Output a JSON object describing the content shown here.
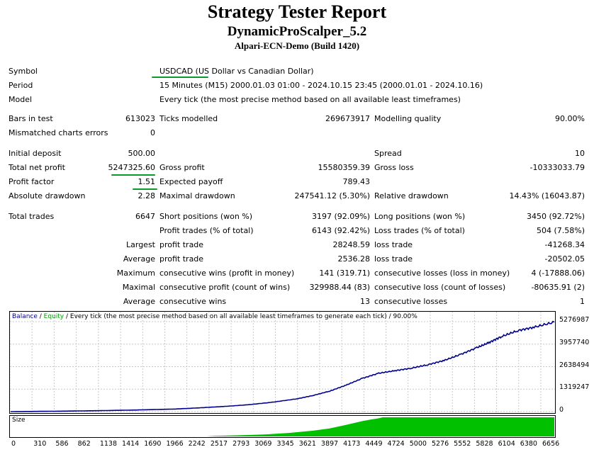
{
  "header": {
    "title": "Strategy Tester Report",
    "expert": "DynamicProScalper_5.2",
    "server": "Alpari-ECN-Demo (Build 1420)"
  },
  "info": {
    "symbol_label": "Symbol",
    "symbol_value": "USDCAD (US Dollar vs Canadian Dollar)",
    "period_label": "Period",
    "period_value": "15 Minutes (M15) 2000.01.03 01:00 - 2024.10.15 23:45 (2000.01.01 - 2024.10.16)",
    "model_label": "Model",
    "model_value": "Every tick (the most precise method based on all available least timeframes)"
  },
  "stats": {
    "bars_label": "Bars in test",
    "bars_value": "613023",
    "ticks_label": "Ticks modelled",
    "ticks_value": "269673917",
    "quality_label": "Modelling quality",
    "quality_value": "90.00%",
    "mismatch_label": "Mismatched charts errors",
    "mismatch_value": "0",
    "deposit_label": "Initial deposit",
    "deposit_value": "500.00",
    "spread_label": "Spread",
    "spread_value": "10",
    "net_label": "Total net profit",
    "net_value": "5247325.60",
    "gross_profit_label": "Gross profit",
    "gross_profit_value": "15580359.39",
    "gross_loss_label": "Gross loss",
    "gross_loss_value": "-10333033.79",
    "pf_label": "Profit factor",
    "pf_value": "1.51",
    "ep_label": "Expected payoff",
    "ep_value": "789.43",
    "abs_dd_label": "Absolute drawdown",
    "abs_dd_value": "2.28",
    "max_dd_label": "Maximal drawdown",
    "max_dd_value": "247541.12 (5.30%)",
    "rel_dd_label": "Relative drawdown",
    "rel_dd_value": "14.43% (16043.87)",
    "trades_label": "Total trades",
    "trades_value": "6647",
    "short_label": "Short positions (won %)",
    "short_value": "3197 (92.09%)",
    "long_label": "Long positions (won %)",
    "long_value": "3450 (92.72%)",
    "pt_label": "Profit trades (% of total)",
    "pt_value": "6143 (92.42%)",
    "lt_label": "Loss trades (% of total)",
    "lt_value": "504 (7.58%)",
    "largest_label": "Largest",
    "lpt_label": "profit trade",
    "lpt_value": "28248.59",
    "llt_label": "loss trade",
    "llt_value": "-41268.34",
    "average_label": "Average",
    "apt_label": "profit trade",
    "apt_value": "2536.28",
    "alt_label": "loss trade",
    "alt_value": "-20502.05",
    "maximum_label": "Maximum",
    "mcw_label": "consecutive wins (profit in money)",
    "mcw_value": "141 (319.71)",
    "mcl_label": "consecutive losses (loss in money)",
    "mcl_value": "4 (-17888.06)",
    "maximal_label": "Maximal",
    "mcp_label": "consecutive profit (count of wins)",
    "mcp_value": "329988.44 (83)",
    "mcloss_label": "consecutive loss (count of losses)",
    "mcloss_value": "-80635.91 (2)",
    "average2_label": "Average",
    "acw_label": "consecutive wins",
    "acw_value": "13",
    "acl_label": "consecutive losses",
    "acl_value": "1"
  },
  "chart": {
    "legend_balance": "Balance",
    "legend_sep1": " / ",
    "legend_equity": "Equity",
    "legend_rest": " / Every tick (the most precise method based on all available least timeframes to generate each tick) / 90.00%",
    "size_label": "Size",
    "colors": {
      "balance": "#00008b",
      "equity": "#00a000",
      "size": "#00c000",
      "grid": "#c8c8c8"
    }
  },
  "chart_data": {
    "type": "line",
    "title": "",
    "xlabel": "",
    "ylabel": "",
    "xticks": [
      "0",
      "310",
      "586",
      "862",
      "1138",
      "1414",
      "1690",
      "1966",
      "2242",
      "2517",
      "2793",
      "3069",
      "3345",
      "3621",
      "3897",
      "4173",
      "4449",
      "4724",
      "5000",
      "5276",
      "5552",
      "5828",
      "6104",
      "6380",
      "6656"
    ],
    "yticks": [
      "5276987",
      "3957740",
      "2638494",
      "1319247",
      "0"
    ],
    "ylim": [
      0,
      5276987
    ],
    "xlim": [
      0,
      6647
    ],
    "series": [
      {
        "name": "Balance",
        "x": [
          0,
          500,
          1000,
          1500,
          2000,
          2300,
          2600,
          2900,
          3200,
          3500,
          3700,
          3900,
          4100,
          4300,
          4500,
          4700,
          4900,
          5100,
          5300,
          5500,
          5700,
          5850,
          6000,
          6200,
          6400,
          6647
        ],
        "values": [
          500,
          20000,
          50000,
          90000,
          150000,
          220000,
          300000,
          400000,
          550000,
          750000,
          950000,
          1200000,
          1550000,
          1950000,
          2250000,
          2400000,
          2550000,
          2750000,
          3000000,
          3350000,
          3750000,
          4050000,
          4400000,
          4750000,
          4950000,
          5247325
        ]
      }
    ],
    "size_series": {
      "x": [
        0,
        2400,
        2500,
        2800,
        3100,
        3400,
        3700,
        3900,
        4100,
        4300,
        4400,
        4500,
        4550,
        6647
      ],
      "values": [
        0,
        0,
        0.03,
        0.06,
        0.1,
        0.18,
        0.3,
        0.42,
        0.6,
        0.8,
        0.88,
        0.95,
        1.0,
        1.0
      ]
    }
  }
}
